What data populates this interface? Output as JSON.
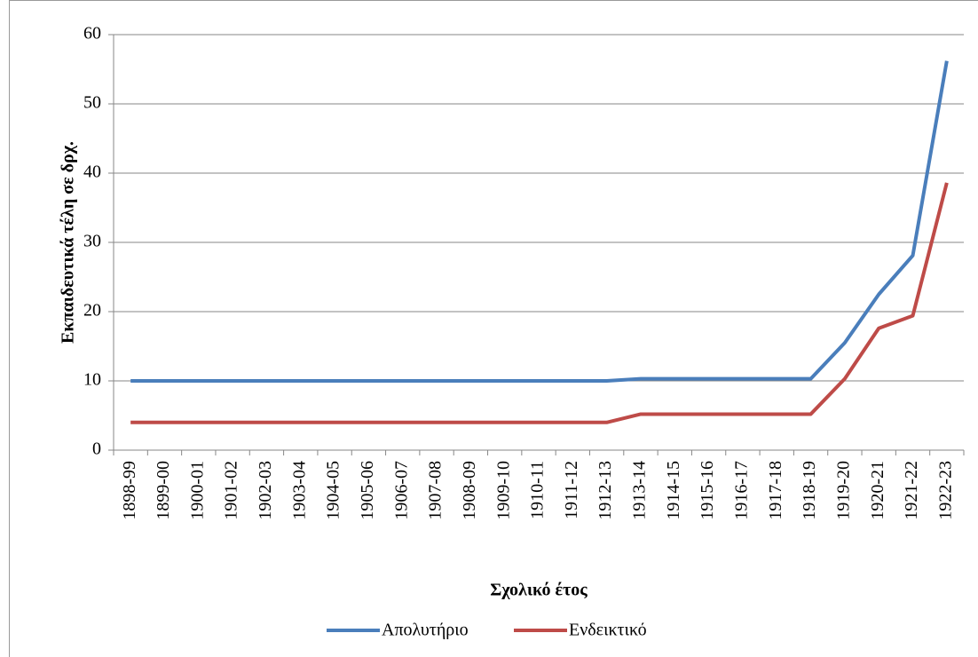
{
  "chart_data": {
    "type": "line",
    "xlabel": "Σχολικό έτος",
    "ylabel": "Εκπαιδευτικά τέλη σε δρχ.",
    "categories": [
      "1898-99",
      "1899-00",
      "1900-01",
      "1901-02",
      "1902-03",
      "1903-04",
      "1904-05",
      "1905-06",
      "1906-07",
      "1907-08",
      "1908-09",
      "1909-10",
      "1910-11",
      "1911-12",
      "1912-13",
      "1913-14",
      "1914-15",
      "1915-16",
      "1916-17",
      "1917-18",
      "1918-19",
      "1919-20",
      "1920-21",
      "1921-22",
      "1922-23"
    ],
    "series": [
      {
        "name": "Απολυτήριο",
        "color": "#4a7ebb",
        "values": [
          10,
          10,
          10,
          10,
          10,
          10,
          10,
          10,
          10,
          10,
          10,
          10,
          10,
          10,
          10,
          10.3,
          10.3,
          10.3,
          10.3,
          10.3,
          10.3,
          15.5,
          22.5,
          28.1,
          56.2
        ]
      },
      {
        "name": "Ενδεικτικό",
        "color": "#be4b48",
        "values": [
          4,
          4,
          4,
          4,
          4,
          4,
          4,
          4,
          4,
          4,
          4,
          4,
          4,
          4,
          4,
          5.2,
          5.2,
          5.2,
          5.2,
          5.2,
          5.2,
          10.3,
          17.6,
          19.4,
          38.6
        ]
      }
    ],
    "ylim": [
      0,
      60
    ],
    "yticks": [
      0,
      10,
      20,
      30,
      40,
      50,
      60
    ],
    "grid": true,
    "legend": "bottom"
  }
}
